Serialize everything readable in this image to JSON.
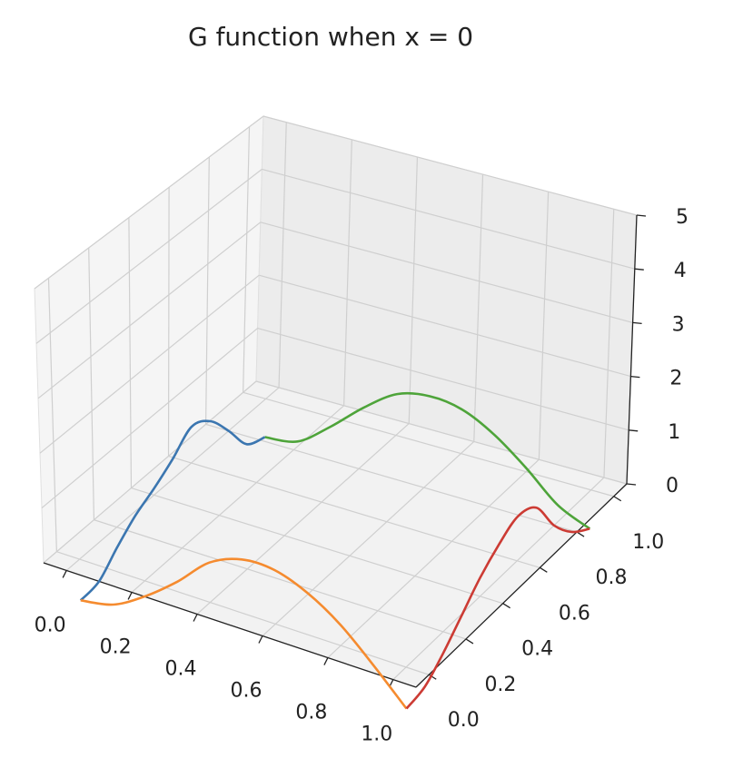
{
  "chart_data": {
    "type": "line3d",
    "title": "G function when x = 0",
    "xlim": [
      -0.07,
      1.07
    ],
    "ylim": [
      -0.07,
      1.07
    ],
    "zlim": [
      0,
      5
    ],
    "xticks": [
      {
        "value": 0,
        "label": "0.0"
      },
      0.2,
      0.4,
      0.6,
      0.8,
      {
        "value": 1,
        "label": "1.0"
      }
    ],
    "yticks": [
      {
        "value": 0,
        "label": "0.0"
      },
      0.2,
      0.4,
      0.6,
      0.8,
      {
        "value": 1,
        "label": "1.0"
      }
    ],
    "zticks": [
      0,
      1,
      2,
      3,
      4,
      5
    ],
    "grid": true,
    "series": [
      {
        "color": "#3b76b0",
        "x": [
          0,
          0,
          0,
          0,
          0,
          0,
          0,
          0,
          0,
          0,
          0
        ],
        "y": [
          0,
          0.1,
          0.2,
          0.3,
          0.4,
          0.5,
          0.6,
          0.7,
          0.8,
          0.9,
          1
        ],
        "z": [
          -0.75,
          -0.7,
          -0.37,
          -0.08,
          0.12,
          0.37,
          0.67,
          0.48,
          0.0,
          -0.55,
          -0.72
        ]
      },
      {
        "color": "#f58b2f",
        "x": [
          0,
          0.1,
          0.2,
          0.3,
          0.4,
          0.5,
          0.6,
          0.7,
          0.8,
          0.9,
          1
        ],
        "y": [
          0,
          0,
          0,
          0,
          0,
          0,
          0,
          0,
          0,
          0,
          0
        ],
        "z": [
          -0.75,
          -0.63,
          -0.28,
          0.18,
          0.72,
          0.97,
          0.97,
          0.75,
          0.37,
          -0.16,
          -0.74
        ]
      },
      {
        "color": "#4ea43a",
        "x": [
          0,
          0.1,
          0.2,
          0.3,
          0.4,
          0.5,
          0.6,
          0.7,
          0.8,
          0.9,
          1
        ],
        "y": [
          1,
          1,
          1,
          1,
          1,
          1,
          1,
          1,
          1,
          1,
          1
        ],
        "z": [
          -0.72,
          -0.63,
          -0.18,
          0.35,
          0.77,
          0.9,
          0.82,
          0.52,
          0.07,
          -0.45,
          -0.72
        ]
      },
      {
        "color": "#cc3b34",
        "x": [
          1,
          1,
          1,
          1,
          1,
          1,
          1,
          1,
          1,
          1,
          1
        ],
        "y": [
          0,
          0.1,
          0.2,
          0.3,
          0.4,
          0.5,
          0.6,
          0.7,
          0.8,
          0.9,
          1
        ],
        "z": [
          -0.74,
          -0.67,
          -0.39,
          -0.03,
          0.34,
          0.62,
          0.81,
          0.65,
          0.0,
          -0.45,
          -0.72
        ]
      }
    ]
  }
}
